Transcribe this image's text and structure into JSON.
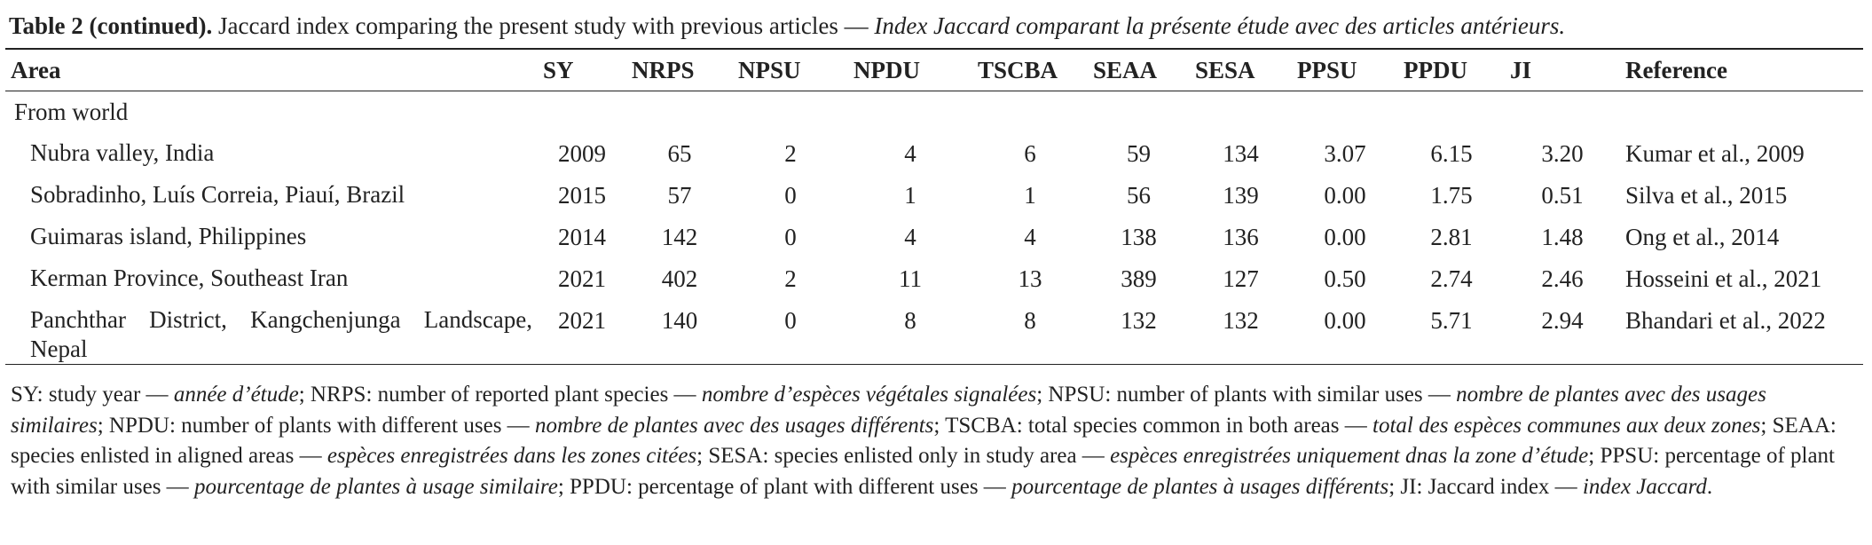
{
  "caption": [
    {
      "text": "Table 2 (continued).",
      "style": "bold"
    },
    {
      "text": " Jaccard index comparing the present study with previous articles — ",
      "style": "normal"
    },
    {
      "text": "Index Jaccard comparant la présente étude avec des articles antérieurs.",
      "style": "italic"
    }
  ],
  "table": {
    "columns": [
      "Area",
      "SY",
      "NRPS",
      "NPSU",
      "NPDU",
      "TSCBA",
      "SEAA",
      "SESA",
      "PPSU",
      "PPDU",
      "JI",
      "Reference"
    ],
    "section": "From world",
    "rows": [
      [
        "Nubra valley, India",
        "2009",
        "65",
        "2",
        "4",
        "6",
        "59",
        "134",
        "3.07",
        "6.15",
        "3.20",
        "Kumar et al., 2009"
      ],
      [
        "Sobradinho, Luís Correia, Piauí, Brazil",
        "2015",
        "57",
        "0",
        "1",
        "1",
        "56",
        "139",
        "0.00",
        "1.75",
        "0.51",
        "Silva et al., 2015"
      ],
      [
        "Guimaras island, Philippines",
        "2014",
        "142",
        "0",
        "4",
        "4",
        "138",
        "136",
        "0.00",
        "2.81",
        "1.48",
        "Ong et al., 2014"
      ],
      [
        "Kerman Province, Southeast Iran",
        "2021",
        "402",
        "2",
        "11",
        "13",
        "389",
        "127",
        "0.50",
        "2.74",
        "2.46",
        "Hosseini et al., 2021"
      ],
      [
        "Panchthar District, Kangchenjunga Landscape, Nepal",
        "2021",
        "140",
        "0",
        "8",
        "8",
        "132",
        "132",
        "0.00",
        "5.71",
        "2.94",
        "Bhandari et al., 2022"
      ]
    ]
  },
  "footnote": [
    {
      "text": "SY: study year — ",
      "style": "normal"
    },
    {
      "text": "année d’étude",
      "style": "italic"
    },
    {
      "text": "; NRPS: number of reported plant species — ",
      "style": "normal"
    },
    {
      "text": "nombre d’espèces végétales signalées",
      "style": "italic"
    },
    {
      "text": "; NPSU: number of plants with similar uses — ",
      "style": "normal"
    },
    {
      "text": "nombre de plantes avec des usages similaires",
      "style": "italic"
    },
    {
      "text": "; NPDU: number of plants with different uses — ",
      "style": "normal"
    },
    {
      "text": "nombre de plantes avec des usages différents",
      "style": "italic"
    },
    {
      "text": "; TSCBA: total species common in both areas — ",
      "style": "normal"
    },
    {
      "text": "total des espèces communes aux deux zones",
      "style": "italic"
    },
    {
      "text": "; SEAA: species enlisted in aligned areas — ",
      "style": "normal"
    },
    {
      "text": "espèces enregistrées dans les zones citées",
      "style": "italic"
    },
    {
      "text": "; SESA: species enlisted only in study area — ",
      "style": "normal"
    },
    {
      "text": "espèces enregistrées uniquement dnas la zone d’étude",
      "style": "italic"
    },
    {
      "text": "; PPSU: percentage of plant with similar uses — ",
      "style": "normal"
    },
    {
      "text": "pourcentage de plantes à usage similaire",
      "style": "italic"
    },
    {
      "text": "; PPDU: percentage of plant with different uses — ",
      "style": "normal"
    },
    {
      "text": "pourcentage de plantes à usages différents",
      "style": "italic"
    },
    {
      "text": "; JI: Jaccard index — ",
      "style": "normal"
    },
    {
      "text": "index Jaccard",
      "style": "italic"
    },
    {
      "text": ".",
      "style": "normal"
    }
  ]
}
